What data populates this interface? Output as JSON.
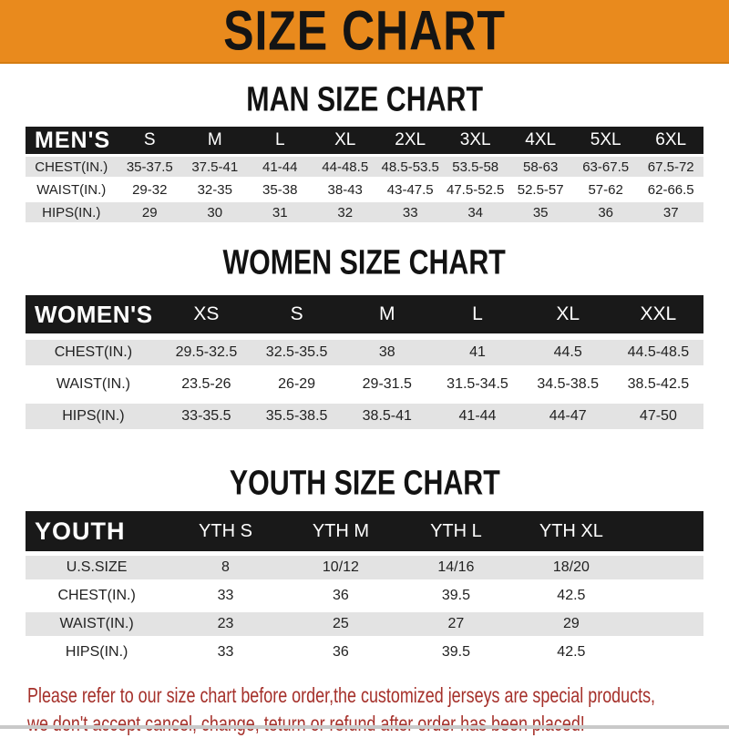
{
  "banner": {
    "title": "SIZE CHART"
  },
  "colors": {
    "banner_bg": "#E98A1D",
    "header_bar_bg": "#191919",
    "alt_row_bg": "#E3E3E3",
    "note_text": "#A5302A"
  },
  "tables": [
    {
      "heading": "MAN SIZE CHART",
      "label": "MEN'S",
      "columns": [
        "S",
        "M",
        "L",
        "XL",
        "2XL",
        "3XL",
        "4XL",
        "5XL",
        "6XL"
      ],
      "rows": [
        {
          "label": "CHEST(IN.)",
          "values": [
            "35-37.5",
            "37.5-41",
            "41-44",
            "44-48.5",
            "48.5-53.5",
            "53.5-58",
            "58-63",
            "63-67.5",
            "67.5-72"
          ]
        },
        {
          "label": "WAIST(IN.)",
          "values": [
            "29-32",
            "32-35",
            "35-38",
            "38-43",
            "43-47.5",
            "47.5-52.5",
            "52.5-57",
            "57-62",
            "62-66.5"
          ]
        },
        {
          "label": "HIPS(IN.)",
          "values": [
            "29",
            "30",
            "31",
            "32",
            "33",
            "34",
            "35",
            "36",
            "37"
          ]
        }
      ]
    },
    {
      "heading": "WOMEN SIZE CHART",
      "label": "WOMEN'S",
      "columns": [
        "XS",
        "S",
        "M",
        "L",
        "XL",
        "XXL"
      ],
      "rows": [
        {
          "label": "CHEST(IN.)",
          "values": [
            "29.5-32.5",
            "32.5-35.5",
            "38",
            "41",
            "44.5",
            "44.5-48.5"
          ]
        },
        {
          "label": "WAIST(IN.)",
          "values": [
            "23.5-26",
            "26-29",
            "29-31.5",
            "31.5-34.5",
            "34.5-38.5",
            "38.5-42.5"
          ]
        },
        {
          "label": "HIPS(IN.)",
          "values": [
            "33-35.5",
            "35.5-38.5",
            "38.5-41",
            "41-44",
            "44-47",
            "47-50"
          ]
        }
      ]
    },
    {
      "heading": "YOUTH SIZE CHART",
      "label": "YOUTH",
      "columns": [
        "YTH S",
        "YTH M",
        "YTH L",
        "YTH XL"
      ],
      "rows": [
        {
          "label": "U.S.SIZE",
          "values": [
            "8",
            "10/12",
            "14/16",
            "18/20"
          ]
        },
        {
          "label": "CHEST(IN.)",
          "values": [
            "33",
            "36",
            "39.5",
            "42.5"
          ]
        },
        {
          "label": "WAIST(IN.)",
          "values": [
            "23",
            "25",
            "27",
            "29"
          ]
        },
        {
          "label": "HIPS(IN.)",
          "values": [
            "33",
            "36",
            "39.5",
            "42.5"
          ]
        }
      ]
    }
  ],
  "note": {
    "line1": "Please refer to our size chart before order,the customized jerseys are special products,",
    "line2": "we don't accept cancel, change, teturn or refund after order has been placed!"
  }
}
